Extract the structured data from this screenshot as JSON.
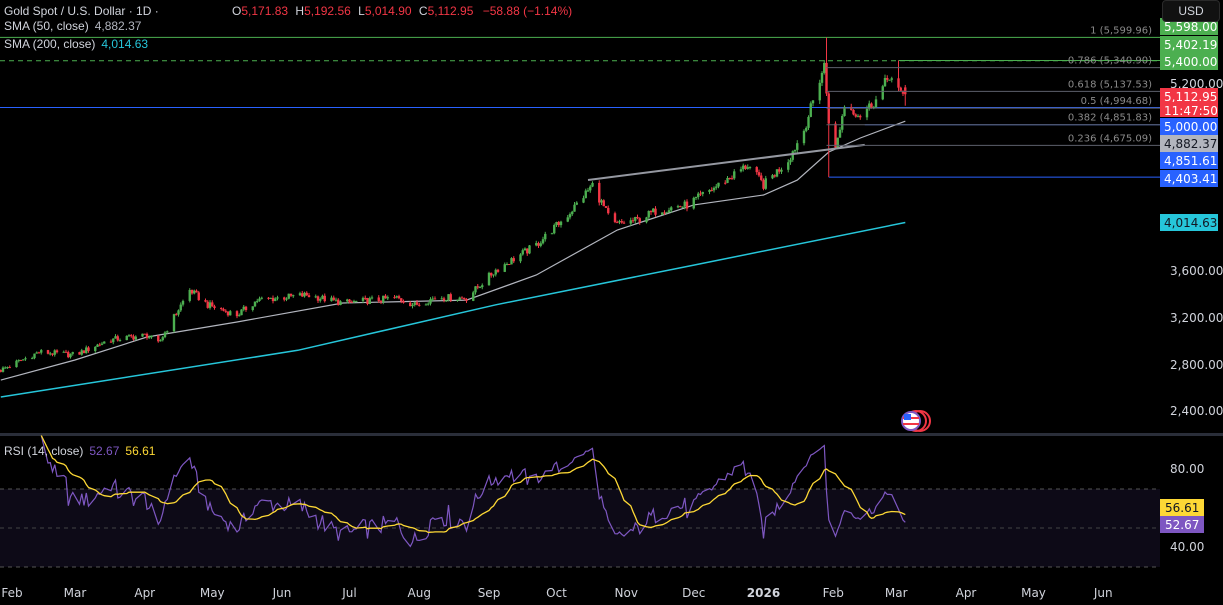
{
  "header": {
    "symbol": "Gold Spot / U.S. Dollar · 1D ·",
    "ohlc": {
      "o_label": "O",
      "o": "5,171.83",
      "h_label": "H",
      "h": "5,192.56",
      "l_label": "L",
      "l": "5,014.90",
      "c_label": "C",
      "c": "5,112.95",
      "change": "−58.88 (−1.14%)"
    },
    "sma50": {
      "label": "SMA (50, close)",
      "value": "4,882.37"
    },
    "sma200": {
      "label": "SMA (200, close)",
      "value": "4,014.63"
    },
    "currency_button": "USD"
  },
  "colors": {
    "up": "#26a69a",
    "bull": "#4caf50",
    "bear": "#f23645",
    "sma50": "#b2b5be",
    "sma200": "#26c6da",
    "rsi": "#7e57c2",
    "rsi_ma": "#fdd835",
    "level_blue": "#2962ff",
    "level_green": "#4caf50",
    "fib": "#5d606b"
  },
  "price_axis": {
    "ticks": [
      "5,200.00",
      "3,600.00",
      "3,200.00",
      "2,800.00",
      "2,400.00"
    ],
    "tags": [
      {
        "text": "5,598.00",
        "bg": "#4caf50",
        "fg": "#ffffff"
      },
      {
        "text": "5,402.19",
        "bg": "#4caf50",
        "fg": "#ffffff"
      },
      {
        "text": "5,400.00",
        "bg": "#4caf50",
        "fg": "#ffffff"
      },
      {
        "text": "5,112.95",
        "bg": "#f23645",
        "fg": "#ffffff"
      },
      {
        "text": "11:47:50",
        "bg": "#f23645",
        "fg": "#ffffff"
      },
      {
        "text": "5,000.00",
        "bg": "#2962ff",
        "fg": "#ffffff"
      },
      {
        "text": "4,882.37",
        "bg": "#b2b5be",
        "fg": "#131722"
      },
      {
        "text": "4,851.61",
        "bg": "#2962ff",
        "fg": "#ffffff"
      },
      {
        "text": "4,403.41",
        "bg": "#2962ff",
        "fg": "#ffffff"
      },
      {
        "text": "4,014.63",
        "bg": "#26c6da",
        "fg": "#131722"
      }
    ]
  },
  "time_axis": [
    {
      "label": "Feb",
      "date": "2025-02-01"
    },
    {
      "label": "Mar",
      "date": "2025-03-01"
    },
    {
      "label": "Apr",
      "date": "2025-04-01"
    },
    {
      "label": "May",
      "date": "2025-05-01"
    },
    {
      "label": "Jun",
      "date": "2025-06-01"
    },
    {
      "label": "Jul",
      "date": "2025-07-01"
    },
    {
      "label": "Aug",
      "date": "2025-08-01"
    },
    {
      "label": "Sep",
      "date": "2025-09-01"
    },
    {
      "label": "Oct",
      "date": "2025-10-01"
    },
    {
      "label": "Nov",
      "date": "2025-11-01"
    },
    {
      "label": "Dec",
      "date": "2025-12-01"
    },
    {
      "label": "2026",
      "date": "2026-01-01",
      "bold": true
    },
    {
      "label": "Feb",
      "date": "2026-02-01"
    },
    {
      "label": "Mar",
      "date": "2026-03-01"
    },
    {
      "label": "Apr",
      "date": "2026-04-01"
    },
    {
      "label": "May",
      "date": "2026-05-01"
    },
    {
      "label": "Jun",
      "date": "2026-06-01"
    }
  ],
  "rsi": {
    "label": "RSI (14, close)",
    "value": "52.67",
    "ma_value": "56.61",
    "ticks": [
      "80.00",
      "40.00"
    ],
    "upper": 70,
    "middle": 50,
    "lower": 30
  },
  "chart_data": {
    "type": "candlestick",
    "title": "Gold Spot / U.S. Dollar · 1D",
    "ylim": [
      2280,
      5650
    ],
    "price_path": [
      [
        "2025-01-27",
        2751
      ],
      [
        "2025-02-13",
        2905
      ],
      [
        "2025-03-01",
        2880
      ],
      [
        "2025-03-16",
        3008
      ],
      [
        "2025-04-02",
        3050
      ],
      [
        "2025-04-07",
        2975
      ],
      [
        "2025-04-21",
        3436
      ],
      [
        "2025-04-29",
        3308
      ],
      [
        "2025-05-12",
        3222
      ],
      [
        "2025-05-21",
        3350
      ],
      [
        "2025-06-12",
        3394
      ],
      [
        "2025-06-28",
        3325
      ],
      [
        "2025-07-22",
        3368
      ],
      [
        "2025-07-30",
        3308
      ],
      [
        "2025-08-09",
        3376
      ],
      [
        "2025-08-22",
        3368
      ],
      [
        "2025-09-04",
        3608
      ],
      [
        "2025-09-22",
        3822
      ],
      [
        "2025-10-06",
        4079
      ],
      [
        "2025-10-17",
        4336
      ],
      [
        "2025-10-26",
        3993
      ],
      [
        "2025-11-06",
        4036
      ],
      [
        "2025-11-15",
        4122
      ],
      [
        "2025-11-28",
        4164
      ],
      [
        "2025-12-12",
        4336
      ],
      [
        "2025-12-25",
        4507
      ],
      [
        "2026-01-01",
        4336
      ],
      [
        "2026-01-12",
        4550
      ],
      [
        "2026-01-19",
        4807
      ],
      [
        "2026-01-28",
        5363
      ],
      [
        "2026-01-30",
        4893
      ],
      [
        "2026-02-02",
        4636
      ],
      [
        "2026-02-06",
        5021
      ],
      [
        "2026-02-13",
        4935
      ],
      [
        "2026-02-20",
        5063
      ],
      [
        "2026-02-26",
        5277
      ],
      [
        "2026-03-03",
        5106
      ],
      [
        "2026-03-05",
        5112.95
      ]
    ],
    "last_bar": {
      "open": 5171.83,
      "high": 5192.56,
      "low": 5014.9,
      "close": 5112.95
    },
    "notable_wicks": [
      {
        "date": "2026-01-29",
        "high": 5598.0
      },
      {
        "date": "2026-01-30",
        "low": 4403.41
      },
      {
        "date": "2026-03-02",
        "high": 5402.19
      }
    ],
    "sma50": [
      [
        "2025-01-27",
        2665
      ],
      [
        "2025-03-01",
        2837
      ],
      [
        "2025-04-02",
        3034
      ],
      [
        "2025-05-12",
        3162
      ],
      [
        "2025-06-28",
        3325
      ],
      [
        "2025-08-22",
        3350
      ],
      [
        "2025-09-22",
        3565
      ],
      [
        "2025-10-28",
        3950
      ],
      [
        "2025-12-01",
        4165
      ],
      [
        "2026-01-01",
        4250
      ],
      [
        "2026-01-16",
        4378
      ],
      [
        "2026-01-30",
        4618
      ],
      [
        "2026-02-13",
        4738
      ],
      [
        "2026-03-05",
        4882.37
      ]
    ],
    "sma200": [
      [
        "2025-01-27",
        2520
      ],
      [
        "2025-06-08",
        2920
      ],
      [
        "2025-09-04",
        3310
      ],
      [
        "2025-12-01",
        3650
      ],
      [
        "2026-03-05",
        4014.63
      ]
    ],
    "trendline": [
      [
        "2025-10-15",
        4379
      ],
      [
        "2026-02-15",
        4679
      ]
    ],
    "horizontal_levels": [
      {
        "price": 5599.96,
        "style": "solid",
        "color": "#4caf50",
        "from": "start"
      },
      {
        "price": 5400.0,
        "style": "dashed",
        "color": "#4caf50",
        "from": "start"
      },
      {
        "price": 5402.19,
        "style": "solid",
        "color": "#4caf50",
        "from": "2026-03-02"
      },
      {
        "price": 5000.0,
        "style": "solid",
        "color": "#2962ff",
        "from": "start"
      },
      {
        "price": 4851.61,
        "style": "solid",
        "color": "#2962ff",
        "from": "2026-02-15"
      },
      {
        "price": 4403.41,
        "style": "solid",
        "color": "#2962ff",
        "from": "2026-01-30"
      }
    ],
    "fibonacci": [
      {
        "label": "1 (5,599.96)",
        "price": 5599.96
      },
      {
        "label": "0.786 (5,340.90)",
        "price": 5340.9
      },
      {
        "label": "0.618 (5,137.53)",
        "price": 5137.53
      },
      {
        "label": "0.5 (4,994.68)",
        "price": 4994.68
      },
      {
        "label": "0.382 (4,851.83)",
        "price": 4851.83
      },
      {
        "label": "0.236 (4,675.09)",
        "price": 4675.09
      }
    ],
    "fib_start": "2026-01-29"
  }
}
